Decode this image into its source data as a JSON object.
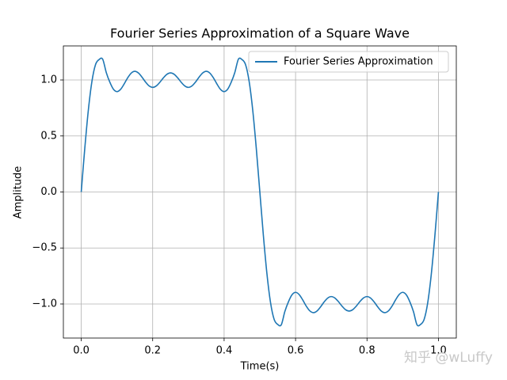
{
  "chart_data": {
    "type": "line",
    "title": "Fourier Series Approximation of a Square Wave",
    "xlabel": "Time(s)",
    "ylabel": "Amplitude",
    "watermark": "知乎 @wLuffy",
    "x": [
      0,
      0.01,
      0.02,
      0.03,
      0.04,
      0.05,
      0.06,
      0.07,
      0.08,
      0.09,
      0.1,
      0.11,
      0.12,
      0.13,
      0.14,
      0.15,
      0.16,
      0.17,
      0.18,
      0.19,
      0.2,
      0.21,
      0.22,
      0.23,
      0.24,
      0.25,
      0.26,
      0.27,
      0.28,
      0.29,
      0.3,
      0.31,
      0.32,
      0.33,
      0.34,
      0.35,
      0.36,
      0.37,
      0.38,
      0.39,
      0.4,
      0.41,
      0.42,
      0.43,
      0.44,
      0.45,
      0.46,
      0.47,
      0.48,
      0.49,
      0.5,
      0.51,
      0.52,
      0.53,
      0.54,
      0.55,
      0.56,
      0.57,
      0.58,
      0.59,
      0.6,
      0.61,
      0.62,
      0.63,
      0.64,
      0.65,
      0.66,
      0.67,
      0.68,
      0.69,
      0.7,
      0.71,
      0.72,
      0.73,
      0.74,
      0.75,
      0.76,
      0.77,
      0.78,
      0.79,
      0.8,
      0.81,
      0.82,
      0.83,
      0.84,
      0.85,
      0.86,
      0.87,
      0.88,
      0.89,
      0.9,
      0.91,
      0.92,
      0.93,
      0.94,
      0.95,
      0.96,
      0.97,
      0.98,
      0.99,
      1.0
    ],
    "series": [
      {
        "name": "Fourier Series Approximation",
        "color": "#1f77b4",
        "values": [
          0,
          0.3914,
          0.7337,
          0.9885,
          1.137,
          1.1823,
          1.1856,
          1.0675,
          0.9807,
          0.9178,
          0.8959,
          0.9155,
          0.9635,
          1.0192,
          1.0617,
          1.0773,
          1.0626,
          1.0257,
          0.9815,
          0.9468,
          0.9338,
          0.9465,
          0.9791,
          1.0189,
          1.0509,
          1.0631,
          1.0509,
          1.0189,
          0.9791,
          0.9465,
          0.9338,
          0.9468,
          0.9815,
          1.0257,
          1.0626,
          1.0773,
          1.0617,
          1.0192,
          0.9635,
          0.9155,
          0.8959,
          0.9178,
          0.9807,
          1.0675,
          1.1856,
          1.1823,
          1.137,
          0.9885,
          0.7337,
          0.3914,
          0,
          -0.3914,
          -0.7337,
          -0.9885,
          -1.137,
          -1.1823,
          -1.1856,
          -1.0675,
          -0.9807,
          -0.9178,
          -0.8959,
          -0.9155,
          -0.9635,
          -1.0192,
          -1.0617,
          -1.0773,
          -1.0626,
          -1.0257,
          -0.9815,
          -0.9468,
          -0.9338,
          -0.9465,
          -0.9791,
          -1.0189,
          -1.0509,
          -1.0631,
          -1.0509,
          -1.0189,
          -0.9791,
          -0.9465,
          -0.9338,
          -0.9468,
          -0.9815,
          -1.0257,
          -1.0626,
          -1.0773,
          -1.0617,
          -1.0192,
          -0.9635,
          -0.9155,
          -0.8959,
          -0.9178,
          -0.9807,
          -1.0675,
          -1.1856,
          -1.1823,
          -1.137,
          -0.9885,
          -0.7337,
          -0.3914,
          0
        ]
      }
    ],
    "xlim": [
      -0.05,
      1.05
    ],
    "xticks": [
      {
        "value": 0,
        "label": "0.0"
      },
      {
        "value": 0.2,
        "label": "0.2"
      },
      {
        "value": 0.4,
        "label": "0.4"
      },
      {
        "value": 0.6,
        "label": "0.6"
      },
      {
        "value": 0.8,
        "label": "0.8"
      },
      {
        "value": 1,
        "label": "1.0"
      }
    ],
    "ylim": [
      -1.304,
      1.304
    ],
    "yticks": [
      {
        "value": -1,
        "label": "−1.0"
      },
      {
        "value": -0.5,
        "label": "−0.5"
      },
      {
        "value": 0,
        "label": "0.0"
      },
      {
        "value": 0.5,
        "label": "0.5"
      },
      {
        "value": 1,
        "label": "1.0"
      }
    ],
    "grid": true,
    "legend": "upper-right"
  }
}
